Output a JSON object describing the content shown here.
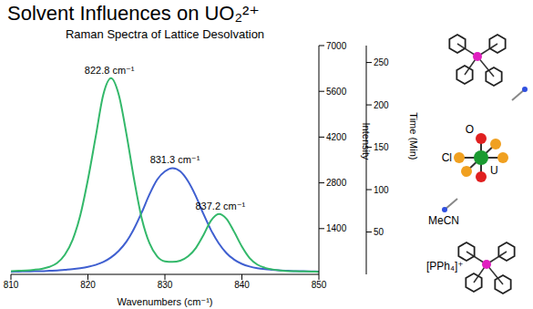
{
  "chart_data": {
    "type": "line",
    "title": "Solvent Influences on UO₂²⁺",
    "subtitle": "Raman Spectra of Lattice Desolvation",
    "x_label": "Wavenumbers (cm⁻¹)",
    "y_label": "Intensity",
    "y2_label": "Time (Min)",
    "x": [
      810,
      811,
      812,
      813,
      814,
      815,
      816,
      817,
      818,
      819,
      820,
      821,
      822,
      823,
      824,
      825,
      826,
      827,
      828,
      829,
      830,
      831,
      832,
      833,
      834,
      835,
      836,
      837,
      838,
      839,
      840,
      841,
      842,
      843,
      844,
      845,
      846,
      847,
      848,
      849,
      850
    ],
    "series": [
      {
        "color": "#3f5fd0",
        "values": [
          80,
          85,
          90,
          95,
          100,
          110,
          120,
          140,
          160,
          190,
          230,
          290,
          380,
          520,
          720,
          1000,
          1400,
          1900,
          2450,
          2900,
          3150,
          3250,
          3150,
          2850,
          2400,
          1850,
          1350,
          950,
          650,
          450,
          320,
          240,
          190,
          160,
          140,
          120,
          110,
          100,
          95,
          90,
          85
        ]
      },
      {
        "color": "#33b86a",
        "values": [
          100,
          110,
          120,
          140,
          170,
          230,
          350,
          600,
          1050,
          1800,
          2900,
          4200,
          5500,
          6000,
          5500,
          4300,
          2900,
          1700,
          950,
          550,
          400,
          380,
          420,
          550,
          800,
          1200,
          1650,
          1850,
          1700,
          1300,
          850,
          500,
          300,
          200,
          150,
          120,
          100,
          95,
          90,
          85,
          80
        ]
      }
    ],
    "xlim": [
      810,
      850
    ],
    "xticks": [
      810,
      820,
      830,
      840,
      850
    ],
    "ylim": [
      0,
      7000
    ],
    "yticks": [
      1400,
      2800,
      4200,
      5600,
      7000
    ],
    "y2lim": [
      0,
      270
    ],
    "y2ticks": [
      50,
      100,
      150,
      200,
      250
    ],
    "annotations": [
      {
        "x": 822.8,
        "y": 6000,
        "label": "822.8 cm⁻¹"
      },
      {
        "x": 837.2,
        "y": 1850,
        "label": "837.2 cm⁻¹"
      },
      {
        "x": 831.3,
        "y": 3250,
        "label": "831.3 cm⁻¹"
      }
    ],
    "grid": false
  },
  "structure": {
    "labels": {
      "oxygen": "O",
      "chloride": "Cl",
      "uranium": "U",
      "solvent": "MeCN",
      "cation": "[PPh₄]⁺"
    }
  }
}
